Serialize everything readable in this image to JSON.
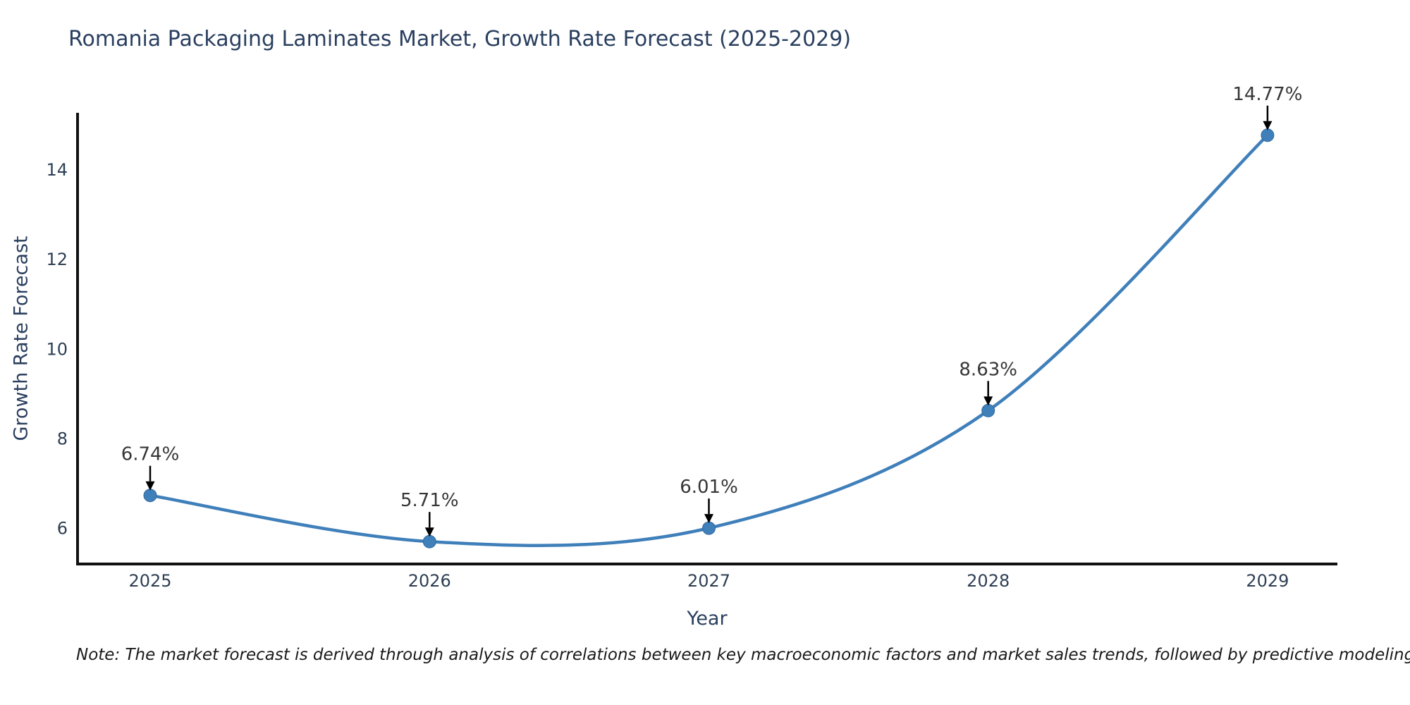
{
  "title": "Romania Packaging Laminates Market, Growth Rate Forecast (2025-2029)",
  "note": "Note: The market forecast is derived through analysis of correlations between key macroeconomic factors and market sales trends, followed by predictive modeling to project future sales",
  "chart_data": {
    "type": "line",
    "line_shape": "spline",
    "title": "Romania Packaging Laminates Market, Growth Rate Forecast (2025-2029)",
    "xlabel": "Year",
    "ylabel": "Growth Rate Forecast",
    "x": [
      2025,
      2026,
      2027,
      2028,
      2029
    ],
    "y": [
      6.74,
      5.71,
      6.01,
      8.63,
      14.77
    ],
    "point_labels": [
      "6.74%",
      "5.71%",
      "6.01%",
      "8.63%",
      "14.77%"
    ],
    "x_tick_labels": [
      "2025",
      "2026",
      "2027",
      "2028",
      "2029"
    ],
    "y_ticks": [
      6,
      8,
      10,
      12,
      14
    ],
    "xlim": [
      2024.74,
      2029.25
    ],
    "ylim": [
      5.21,
      15.27
    ],
    "grid": false,
    "legend": "none",
    "colors": {
      "line": "#3f7fba",
      "marker": "#3f7fba",
      "marker_edge": "#316a9e",
      "axis": "#111111",
      "tick_text": "#2e3f54",
      "annotation_text": "#363636",
      "arrow": "#000000",
      "heading_text": "#2a3f5f",
      "background": "#ffffff"
    }
  }
}
